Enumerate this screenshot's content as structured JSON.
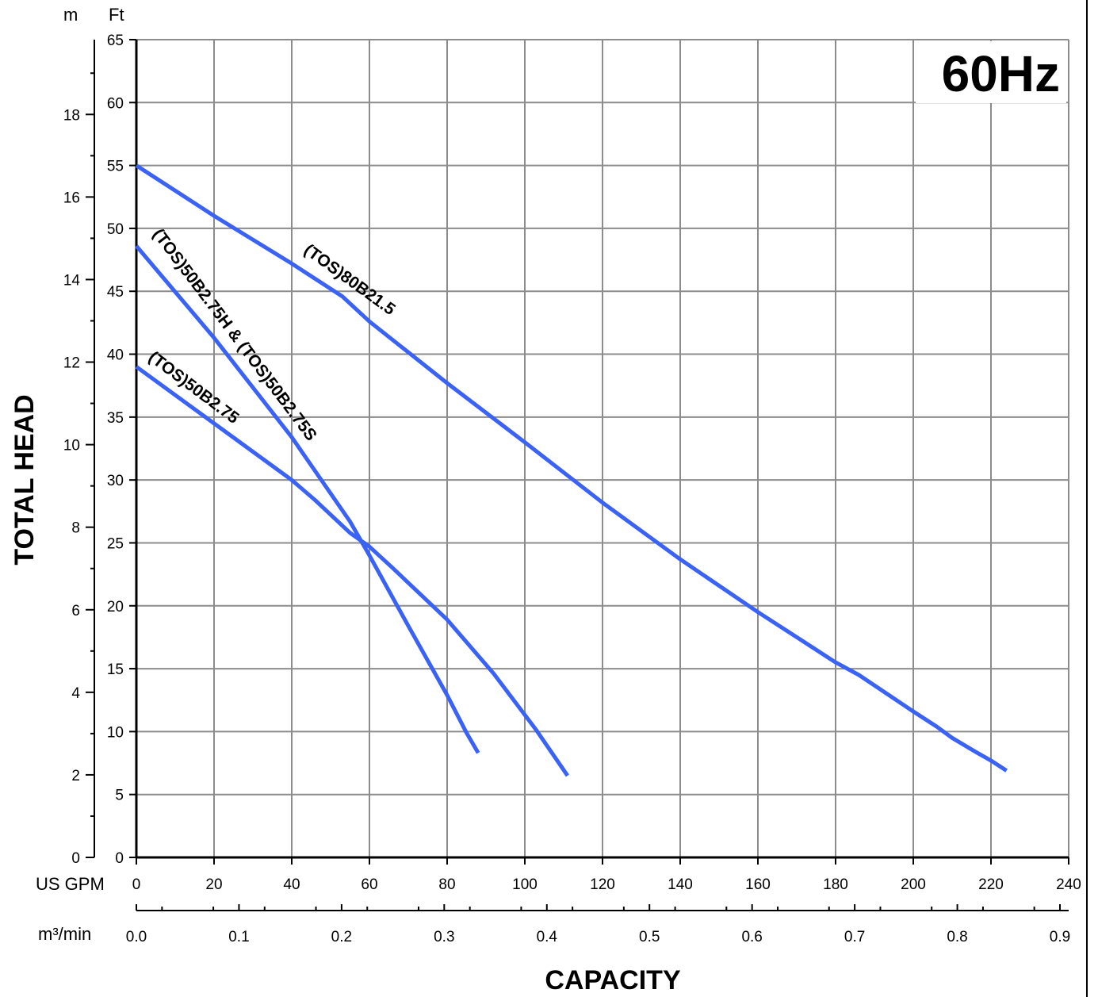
{
  "chart_data": {
    "type": "line",
    "title": "",
    "badge": "60Hz",
    "xlabel": "CAPACITY",
    "ylabel": "TOTAL HEAD",
    "x_axis": {
      "unit": "US GPM",
      "min": 0,
      "max": 240,
      "ticks": [
        "0",
        "20",
        "40",
        "60",
        "80",
        "100",
        "120",
        "140",
        "160",
        "180",
        "200",
        "220",
        "240"
      ]
    },
    "x2_axis": {
      "unit": "m³/min",
      "ticks": [
        "0.0",
        "0.1",
        "0.2",
        "0.3",
        "0.4",
        "0.5",
        "0.6",
        "0.7",
        "0.8",
        "0.9"
      ],
      "tick_values": [
        0.0,
        0.1,
        0.2,
        0.3,
        0.4,
        0.5,
        0.6,
        0.7,
        0.8,
        0.9
      ]
    },
    "y_axis": {
      "unit": "Ft",
      "min": 0,
      "max": 65,
      "ticks": [
        "0",
        "5",
        "10",
        "15",
        "20",
        "25",
        "30",
        "35",
        "40",
        "45",
        "50",
        "55",
        "60",
        "65"
      ]
    },
    "y2_axis": {
      "unit": "m",
      "ticks": [
        "0",
        "2",
        "4",
        "6",
        "8",
        "10",
        "12",
        "14",
        "16",
        "18"
      ],
      "tick_values": [
        0,
        2,
        4,
        6,
        8,
        10,
        12,
        14,
        16,
        18
      ]
    },
    "grid": true,
    "series": [
      {
        "name": "(TOS)80B21.5",
        "color": "#3a62f5",
        "points": [
          [
            0,
            55
          ],
          [
            20,
            51
          ],
          [
            40,
            47.2
          ],
          [
            53,
            44.6
          ],
          [
            60,
            42.6
          ],
          [
            80,
            37.7
          ],
          [
            100,
            33
          ],
          [
            120,
            28.2
          ],
          [
            140,
            23.7
          ],
          [
            160,
            19.5
          ],
          [
            180,
            15.5
          ],
          [
            186,
            14.5
          ],
          [
            200,
            11.6
          ],
          [
            206,
            10.4
          ],
          [
            210,
            9.5
          ],
          [
            216,
            8.4
          ],
          [
            220,
            7.7
          ],
          [
            224,
            6.9
          ]
        ]
      },
      {
        "name": "(TOS)50B2.75H & (TOS)50B2.75S",
        "color": "#3a62f5",
        "points": [
          [
            0,
            48.6
          ],
          [
            20,
            41.3
          ],
          [
            40,
            33.4
          ],
          [
            55,
            26.7
          ],
          [
            60,
            24
          ],
          [
            70,
            18.4
          ],
          [
            80,
            12.9
          ],
          [
            85,
            9.9
          ],
          [
            88,
            8.3
          ]
        ]
      },
      {
        "name": "(TOS)50B2.75",
        "color": "#3a62f5",
        "points": [
          [
            0,
            39
          ],
          [
            20,
            34.5
          ],
          [
            40,
            30
          ],
          [
            46,
            28.4
          ],
          [
            55,
            25.8
          ],
          [
            60,
            24.7
          ],
          [
            66,
            23
          ],
          [
            80,
            18.9
          ],
          [
            92,
            14.6
          ],
          [
            103,
            10.1
          ],
          [
            111,
            6.5
          ]
        ]
      }
    ]
  }
}
